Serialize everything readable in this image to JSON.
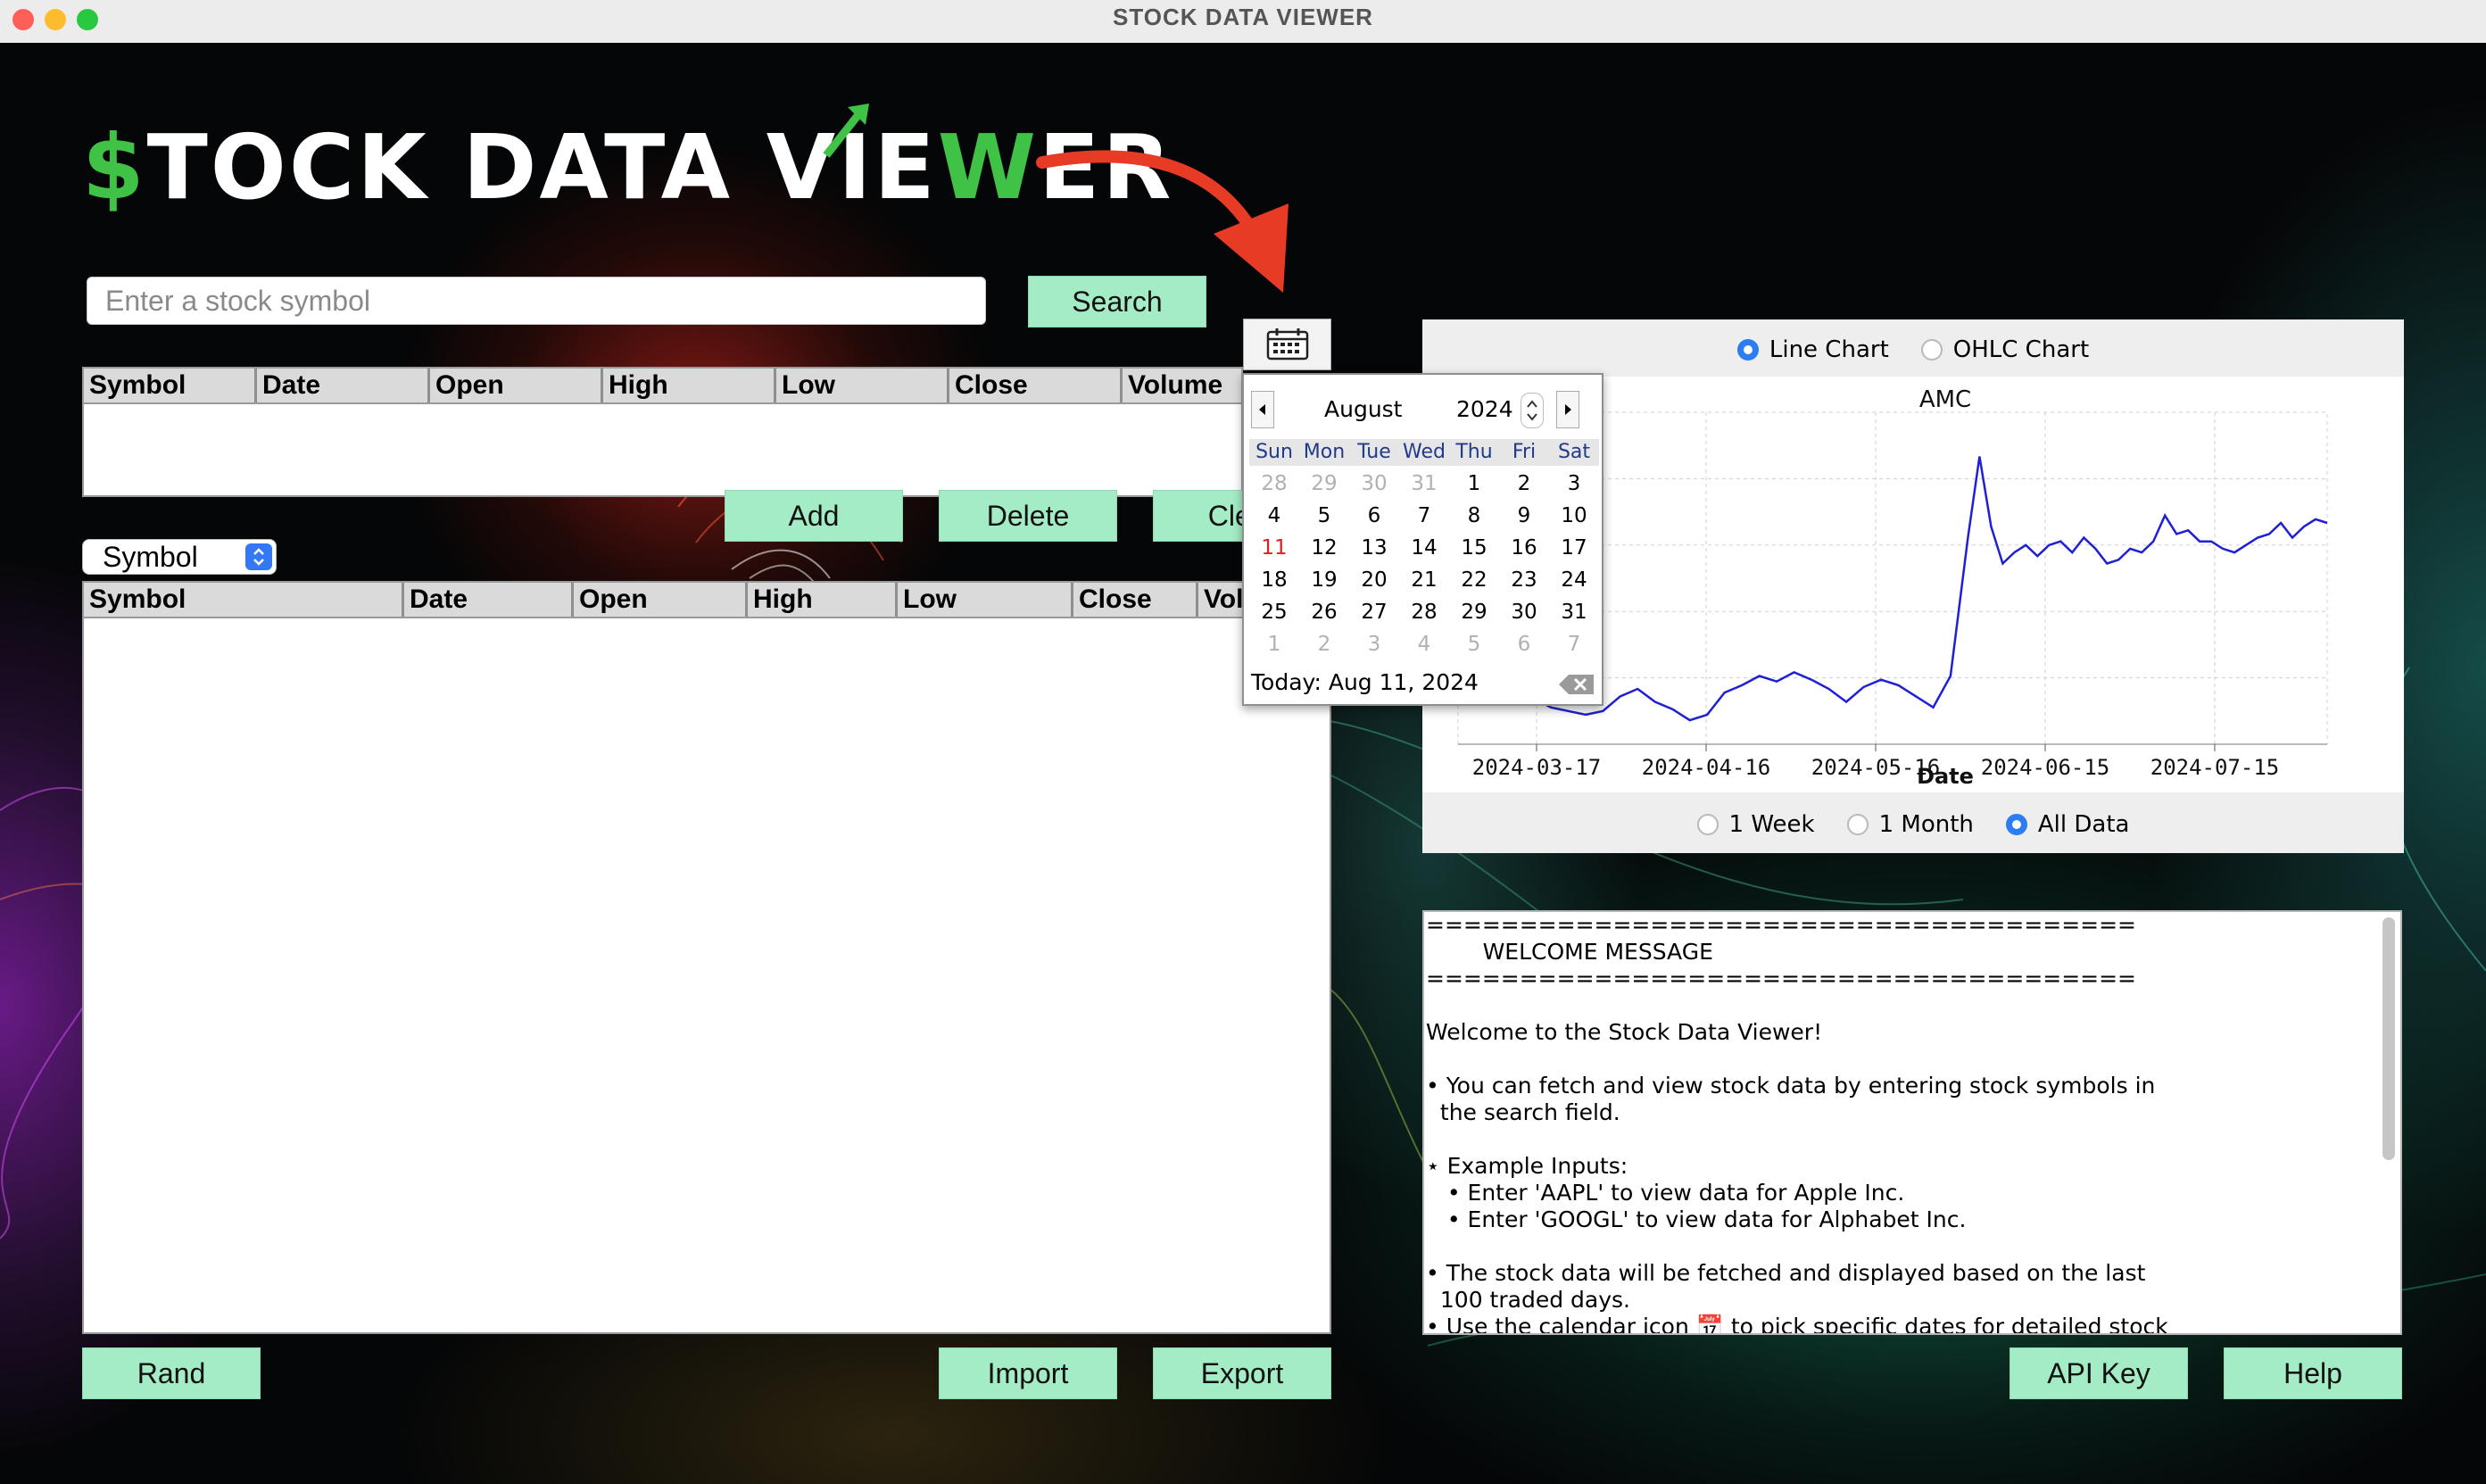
{
  "window": {
    "title": "STOCK DATA VIEWER"
  },
  "logo": {
    "dollar": "$",
    "part1": "TOCK DATA VIE",
    "w": "W",
    "part2": "ER"
  },
  "search": {
    "placeholder": "Enter a stock symbol",
    "button_label": "Search"
  },
  "top_table": {
    "columns": [
      "Symbol",
      "Date",
      "Open",
      "High",
      "Low",
      "Close",
      "Volume"
    ]
  },
  "controls": {
    "select_value": "Symbol",
    "add_label": "Add",
    "delete_label": "Delete",
    "clear_label": "Clear"
  },
  "main_table": {
    "columns": [
      "Symbol",
      "Date",
      "Open",
      "High",
      "Low",
      "Close",
      "Volume"
    ]
  },
  "bottom_buttons": {
    "rand": "Rand",
    "import": "Import",
    "export": "Export",
    "api_key": "API Key",
    "help": "Help"
  },
  "chart_panel": {
    "chart_types": [
      {
        "label": "Line Chart",
        "selected": true
      },
      {
        "label": "OHLC Chart",
        "selected": false
      }
    ],
    "ranges": [
      {
        "label": "1 Week",
        "selected": false
      },
      {
        "label": "1 Month",
        "selected": false
      },
      {
        "label": "All Data",
        "selected": true
      }
    ]
  },
  "chart_data": {
    "type": "line",
    "title": "AMC",
    "xlabel": "Date",
    "ylabel": "",
    "x_ticks": [
      "2024-03-17",
      "2024-04-16",
      "2024-05-16",
      "2024-06-15",
      "2024-07-15"
    ],
    "x_domain": [
      0,
      150
    ],
    "ylim": [
      0,
      9
    ],
    "line_color": "#1f1fd6",
    "series": [
      {
        "name": "AMC",
        "values": [
          [
            4,
            1.2
          ],
          [
            7,
            1.5
          ],
          [
            10,
            1.35
          ],
          [
            13,
            1.25
          ],
          [
            16,
            1.0
          ],
          [
            19,
            0.9
          ],
          [
            22,
            0.8
          ],
          [
            25,
            0.9
          ],
          [
            28,
            1.3
          ],
          [
            31,
            1.5
          ],
          [
            34,
            1.15
          ],
          [
            37,
            0.95
          ],
          [
            40,
            0.65
          ],
          [
            43,
            0.8
          ],
          [
            46,
            1.4
          ],
          [
            49,
            1.6
          ],
          [
            52,
            1.85
          ],
          [
            55,
            1.7
          ],
          [
            58,
            1.95
          ],
          [
            61,
            1.75
          ],
          [
            64,
            1.5
          ],
          [
            67,
            1.15
          ],
          [
            70,
            1.55
          ],
          [
            73,
            1.75
          ],
          [
            76,
            1.6
          ],
          [
            79,
            1.3
          ],
          [
            82,
            1.0
          ],
          [
            85,
            1.85
          ],
          [
            88,
            5.6
          ],
          [
            90,
            7.8
          ],
          [
            92,
            5.9
          ],
          [
            94,
            4.9
          ],
          [
            96,
            5.2
          ],
          [
            98,
            5.4
          ],
          [
            100,
            5.1
          ],
          [
            102,
            5.4
          ],
          [
            104,
            5.5
          ],
          [
            106,
            5.2
          ],
          [
            108,
            5.6
          ],
          [
            110,
            5.3
          ],
          [
            112,
            4.9
          ],
          [
            114,
            5.0
          ],
          [
            116,
            5.3
          ],
          [
            118,
            5.2
          ],
          [
            120,
            5.5
          ],
          [
            122,
            6.2
          ],
          [
            124,
            5.7
          ],
          [
            126,
            5.8
          ],
          [
            128,
            5.5
          ],
          [
            130,
            5.5
          ],
          [
            132,
            5.3
          ],
          [
            134,
            5.2
          ],
          [
            136,
            5.4
          ],
          [
            138,
            5.6
          ],
          [
            140,
            5.7
          ],
          [
            142,
            6.0
          ],
          [
            144,
            5.6
          ],
          [
            146,
            5.9
          ],
          [
            148,
            6.1
          ],
          [
            150,
            6.0
          ]
        ]
      }
    ]
  },
  "message": {
    "lines": [
      "======================================",
      "        WELCOME MESSAGE",
      "======================================",
      "",
      "Welcome to the Stock Data Viewer!",
      "",
      "• You can fetch and view stock data by entering stock symbols in",
      "  the search field.",
      "",
      "⋆ Example Inputs:",
      "   • Enter 'AAPL' to view data for Apple Inc.",
      "   • Enter 'GOOGL' to view data for Alphabet Inc.",
      "",
      "• The stock data will be fetched and displayed based on the last",
      "  100 traded days.",
      "• Use the calendar icon 📅 to pick specific dates for detailed stock"
    ]
  },
  "calendar": {
    "month": "August",
    "year": "2024",
    "weekdays": [
      "Sun",
      "Mon",
      "Tue",
      "Wed",
      "Thu",
      "Fri",
      "Sat"
    ],
    "weeks": [
      [
        {
          "d": "28",
          "o": true
        },
        {
          "d": "29",
          "o": true
        },
        {
          "d": "30",
          "o": true
        },
        {
          "d": "31",
          "o": true
        },
        {
          "d": "1"
        },
        {
          "d": "2"
        },
        {
          "d": "3"
        }
      ],
      [
        {
          "d": "4"
        },
        {
          "d": "5"
        },
        {
          "d": "6"
        },
        {
          "d": "7"
        },
        {
          "d": "8"
        },
        {
          "d": "9"
        },
        {
          "d": "10"
        }
      ],
      [
        {
          "d": "11",
          "t": true
        },
        {
          "d": "12"
        },
        {
          "d": "13"
        },
        {
          "d": "14"
        },
        {
          "d": "15"
        },
        {
          "d": "16"
        },
        {
          "d": "17"
        }
      ],
      [
        {
          "d": "18"
        },
        {
          "d": "19"
        },
        {
          "d": "20"
        },
        {
          "d": "21"
        },
        {
          "d": "22"
        },
        {
          "d": "23"
        },
        {
          "d": "24"
        }
      ],
      [
        {
          "d": "25"
        },
        {
          "d": "26"
        },
        {
          "d": "27"
        },
        {
          "d": "28"
        },
        {
          "d": "29"
        },
        {
          "d": "30"
        },
        {
          "d": "31"
        }
      ],
      [
        {
          "d": "1",
          "o": true
        },
        {
          "d": "2",
          "o": true
        },
        {
          "d": "3",
          "o": true
        },
        {
          "d": "4",
          "o": true
        },
        {
          "d": "5",
          "o": true
        },
        {
          "d": "6",
          "o": true
        },
        {
          "d": "7",
          "o": true
        }
      ]
    ],
    "today_label": "Today: Aug 11, 2024"
  }
}
